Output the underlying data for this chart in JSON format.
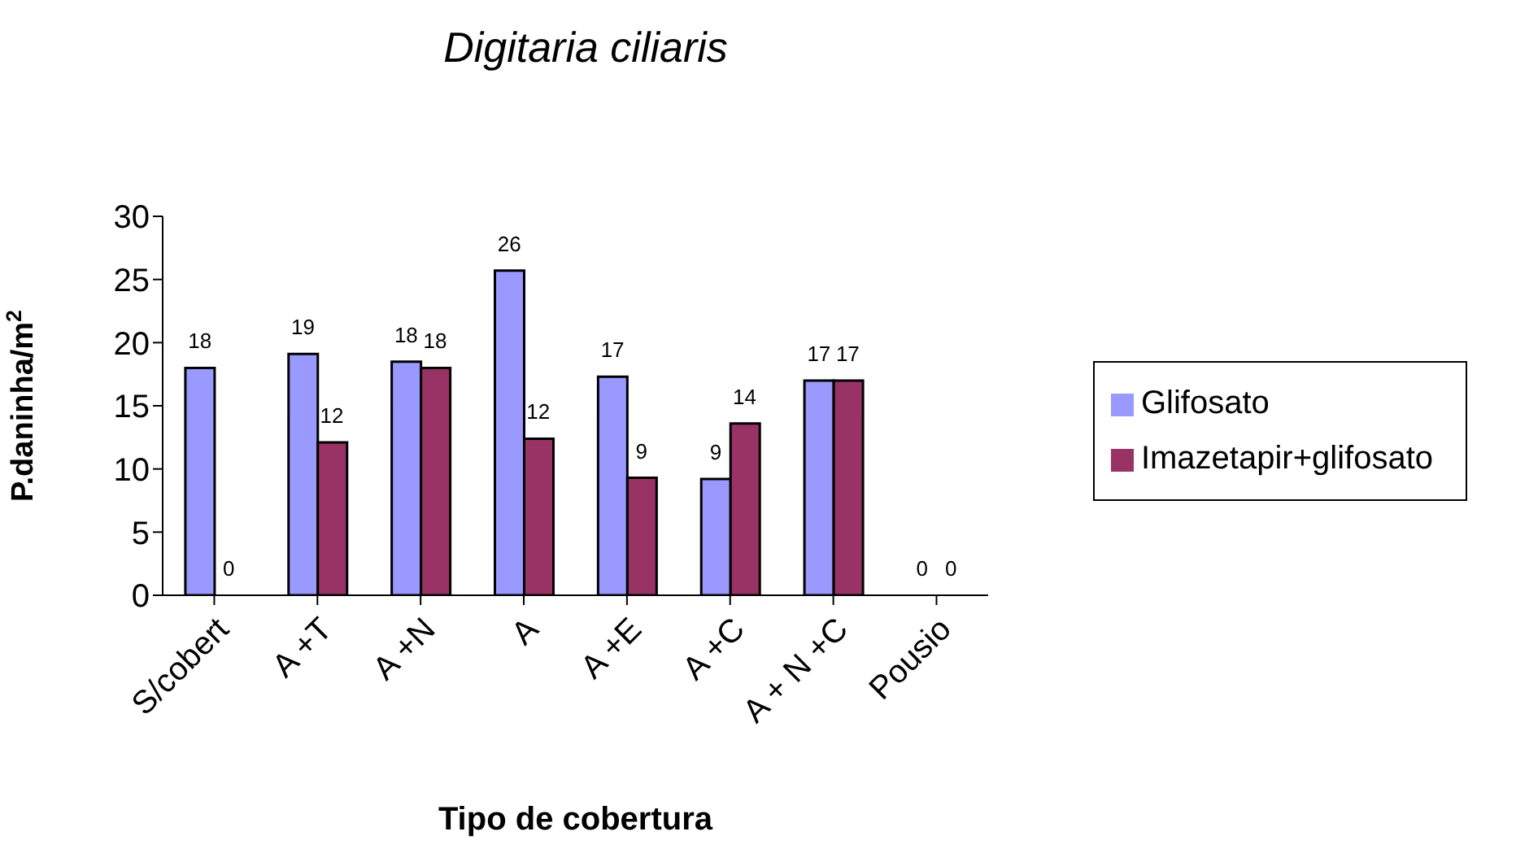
{
  "chart_data": {
    "type": "bar",
    "title": "Digitaria ciliaris",
    "xlabel": "Tipo de cobertura",
    "ylabel": "P.daninha/m$^{2}$",
    "categories": [
      "S/cobert",
      "A +T",
      "A +N",
      "A",
      "A +E",
      "A +C",
      "A + N +C",
      "Pousio"
    ],
    "series": [
      {
        "name": "Glifosato",
        "color": "#9999ff",
        "values": [
          18.0,
          19.1,
          18.5,
          25.7,
          17.3,
          9.2,
          17.0,
          0
        ],
        "value_labels": [
          "18",
          "19",
          "18",
          "26",
          "17",
          "9",
          "17",
          "0"
        ]
      },
      {
        "name": "Imazetapir+glifosato",
        "color": "#993366",
        "values": [
          0,
          12.1,
          18.0,
          12.4,
          9.3,
          13.6,
          17.0,
          0
        ],
        "value_labels": [
          "0",
          "12",
          "18",
          "12",
          "9",
          "14",
          "17",
          "0"
        ]
      }
    ],
    "ylim": [
      0,
      30
    ],
    "yticks": [
      0,
      5,
      10,
      15,
      20,
      25,
      30
    ],
    "grid": false,
    "legend": "right"
  }
}
